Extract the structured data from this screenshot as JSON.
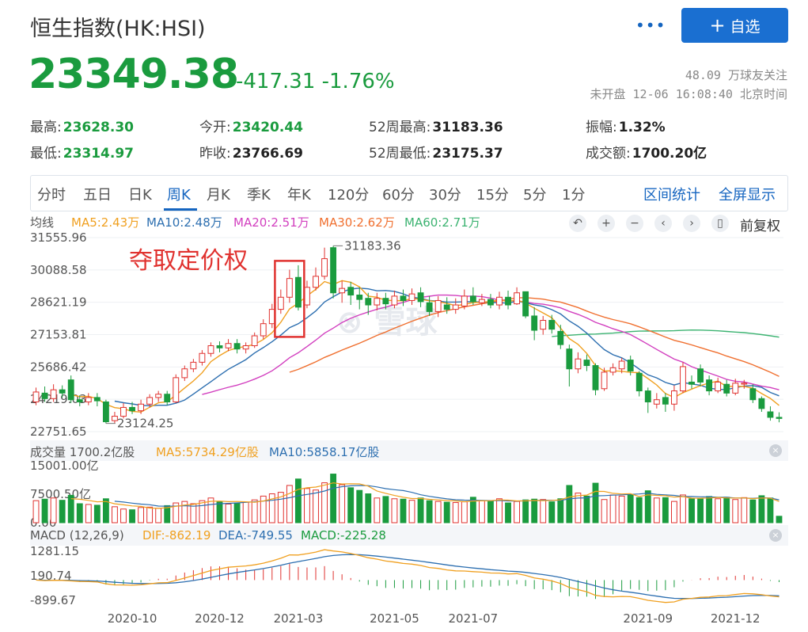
{
  "header": {
    "title": "恒生指数(HK:HSI)",
    "follow_label": "自选",
    "price": "23349.38",
    "change": "-417.31",
    "change_pct": "-1.76%",
    "followers": "48.09 万球友关注",
    "status": "未开盘 12-06 16:08:40 北京时间",
    "colors": {
      "down": "#1a9b3e",
      "up": "#e0322f",
      "accent": "#1a6fd1"
    }
  },
  "quote": {
    "high_label": "最高:",
    "high": "23628.30",
    "low_label": "最低:",
    "low": "23314.97",
    "open_label": "今开:",
    "open": "23420.44",
    "prev_close_label": "昨收:",
    "prev_close": "23766.69",
    "wk52_high_label": "52周最高:",
    "wk52_high": "31183.36",
    "wk52_low_label": "52周最低:",
    "wk52_low": "23175.37",
    "amplitude_label": "振幅:",
    "amplitude": "1.32%",
    "turnover_label": "成交额:",
    "turnover": "1700.20亿"
  },
  "tabs": [
    "分时",
    "五日",
    "日K",
    "周K",
    "月K",
    "季K",
    "年K",
    "120分",
    "60分",
    "30分",
    "15分",
    "5分",
    "1分"
  ],
  "active_tab": "周K",
  "tools": {
    "range_stats": "区间统计",
    "fullscreen": "全屏显示",
    "restore_right": "前复权"
  },
  "legend": {
    "avg_label": "均线",
    "ma5": "MA5:2.43万",
    "ma10": "MA10:2.48万",
    "ma20": "MA20:2.51万",
    "ma30": "MA30:2.62万",
    "ma60": "MA60:2.71万",
    "colors": {
      "ma5": "#f0a020",
      "ma10": "#2d6fb0",
      "ma20": "#d23fbf",
      "ma30": "#f07030",
      "ma60": "#3cb371"
    }
  },
  "volume_legend": {
    "label": "成交量 1700.2亿股",
    "ma5": "MA5:5734.29亿股",
    "ma10": "MA10:5858.17亿股"
  },
  "macd_legend": {
    "label": "MACD (12,26,9)",
    "dif": "DIF:-862.19",
    "dea": "DEA:-749.55",
    "macd": "MACD:-225.28"
  },
  "annotation": "夺取定价权",
  "chart_data": {
    "type": "candlestick",
    "interval": "weekly",
    "price_axis": {
      "ticks": [
        "31555.96",
        "30088.58",
        "28621.19",
        "27153.81",
        "25686.42",
        "24219.03",
        "22751.65"
      ],
      "range": [
        22751.65,
        31555.96
      ]
    },
    "max_marker": "31183.36",
    "min_marker": "23124.25",
    "x_ticks": [
      "2020-10",
      "2020-12",
      "2021-03",
      "2021-05",
      "2021-07",
      "2021-09",
      "2021-12"
    ],
    "candles": [
      [
        24100,
        24550,
        24750,
        23950
      ],
      [
        24500,
        24250,
        24800,
        24100
      ],
      [
        24250,
        24650,
        24900,
        24100
      ],
      [
        24650,
        24500,
        24850,
        24300
      ],
      [
        25100,
        24200,
        25300,
        24050
      ],
      [
        24200,
        24100,
        24400,
        23900
      ],
      [
        24100,
        24300,
        24500,
        23950
      ],
      [
        24300,
        24150,
        24500,
        23900
      ],
      [
        24100,
        23200,
        24200,
        23124.25
      ],
      [
        23250,
        23450,
        23650,
        23124.25
      ],
      [
        23450,
        23850,
        24050,
        23350
      ],
      [
        23850,
        23700,
        24100,
        23550
      ],
      [
        23700,
        24000,
        24200,
        23550
      ],
      [
        24000,
        24300,
        24450,
        23850
      ],
      [
        24300,
        24450,
        24600,
        24100
      ],
      [
        24450,
        24100,
        24600,
        23950
      ],
      [
        24100,
        25200,
        25350,
        24050
      ],
      [
        25200,
        25600,
        25750,
        25050
      ],
      [
        25600,
        25900,
        26050,
        25450
      ],
      [
        25900,
        26300,
        26450,
        25750
      ],
      [
        26300,
        26650,
        26800,
        26150
      ],
      [
        26650,
        26550,
        26850,
        26350
      ],
      [
        26550,
        26750,
        26950,
        26400
      ],
      [
        26750,
        26500,
        26950,
        26300
      ],
      [
        26500,
        26650,
        26800,
        26300
      ],
      [
        26650,
        27100,
        27250,
        26550
      ],
      [
        27100,
        27650,
        27850,
        26950
      ],
      [
        27650,
        28300,
        28550,
        27450
      ],
      [
        28300,
        28850,
        29200,
        28100
      ],
      [
        28850,
        29700,
        30100,
        28600
      ],
      [
        29750,
        28400,
        30300,
        28250
      ],
      [
        28500,
        29300,
        29600,
        28350
      ],
      [
        29300,
        29800,
        30200,
        29150
      ],
      [
        29800,
        30600,
        31100,
        29650
      ],
      [
        31100,
        29050,
        31183.36,
        28800
      ],
      [
        29050,
        29250,
        29600,
        28600
      ],
      [
        29300,
        28950,
        29550,
        28500
      ],
      [
        28950,
        28750,
        29300,
        28300
      ],
      [
        28800,
        28500,
        29050,
        28050
      ],
      [
        28500,
        28800,
        29050,
        28250
      ],
      [
        28800,
        28550,
        29050,
        28300
      ],
      [
        28500,
        28900,
        29150,
        28350
      ],
      [
        28900,
        28700,
        29200,
        28450
      ],
      [
        28700,
        29000,
        29250,
        28500
      ],
      [
        29050,
        28650,
        29300,
        28400
      ],
      [
        28600,
        28200,
        28900,
        28000
      ],
      [
        28200,
        28700,
        28900,
        27950
      ],
      [
        28500,
        28300,
        28850,
        28100
      ],
      [
        28300,
        28500,
        28800,
        28100
      ],
      [
        28450,
        28900,
        29200,
        28300
      ],
      [
        28900,
        28650,
        29300,
        28500
      ],
      [
        28600,
        28750,
        29000,
        28450
      ],
      [
        28750,
        28500,
        29000,
        28350
      ],
      [
        28500,
        28850,
        29100,
        28300
      ],
      [
        28850,
        28500,
        29150,
        28300
      ],
      [
        28550,
        29050,
        29300,
        28500
      ],
      [
        29100,
        28000,
        29100,
        27900
      ],
      [
        28000,
        27350,
        28400,
        26900
      ],
      [
        27400,
        27800,
        28000,
        27150
      ],
      [
        27800,
        27400,
        28050,
        27200
      ],
      [
        27300,
        26700,
        27600,
        26500
      ],
      [
        26500,
        25600,
        26700,
        24800
      ],
      [
        25600,
        26050,
        26350,
        25400
      ],
      [
        26000,
        25750,
        26250,
        25500
      ],
      [
        25750,
        24650,
        25850,
        24400
      ],
      [
        24700,
        25450,
        25650,
        24600
      ],
      [
        25450,
        25650,
        25850,
        25300
      ],
      [
        25600,
        25950,
        26100,
        25400
      ],
      [
        26000,
        25500,
        26200,
        25300
      ],
      [
        25400,
        24600,
        25500,
        24350
      ],
      [
        24600,
        24100,
        24750,
        23600
      ],
      [
        24000,
        24200,
        24500,
        23800
      ],
      [
        24300,
        24000,
        24500,
        23650
      ],
      [
        24000,
        24600,
        24850,
        23700
      ],
      [
        24600,
        25700,
        25900,
        24500
      ],
      [
        25000,
        24900,
        25300,
        24700
      ],
      [
        25600,
        25000,
        25800,
        24800
      ],
      [
        25100,
        24600,
        25300,
        24400
      ],
      [
        24600,
        25000,
        25200,
        24500
      ],
      [
        24900,
        24500,
        25100,
        24350
      ],
      [
        24500,
        24950,
        25150,
        24400
      ],
      [
        24950,
        24950,
        25100,
        24700
      ],
      [
        24700,
        24200,
        24900,
        24050
      ],
      [
        24250,
        23800,
        24350,
        23650
      ],
      [
        23650,
        23400,
        23900,
        23250
      ],
      [
        23400,
        23349.38,
        23628.3,
        23175.37
      ]
    ],
    "volume_axis": {
      "ticks": [
        "15001.00亿",
        "7500.50亿",
        "0.00"
      ],
      "range": [
        0,
        15001
      ]
    },
    "volume": [
      5800,
      6200,
      6500,
      5900,
      7200,
      5000,
      4800,
      4600,
      6300,
      4200,
      3600,
      3400,
      4000,
      4100,
      3800,
      4500,
      5200,
      5600,
      5000,
      5800,
      6500,
      5500,
      4900,
      5200,
      5400,
      6000,
      7000,
      7600,
      8000,
      9800,
      11500,
      9000,
      8600,
      10500,
      12800,
      10000,
      9200,
      8500,
      7600,
      6500,
      6900,
      6300,
      6200,
      5900,
      6500,
      5800,
      5600,
      5400,
      5300,
      5500,
      6700,
      5800,
      5700,
      6300,
      5200,
      5600,
      6000,
      6200,
      6100,
      5500,
      6300,
      9800,
      7800,
      7000,
      10400,
      6100,
      7300,
      7000,
      7400,
      6600,
      8400,
      6500,
      6600,
      5600,
      7300,
      6300,
      6400,
      6900,
      6300,
      6700,
      6100,
      6600,
      6000,
      7100,
      6500,
      1700.2
    ],
    "macd_axis": {
      "ticks": [
        "1281.15",
        "190.74",
        "-899.67"
      ],
      "range": [
        -899.67,
        1281.15
      ]
    }
  }
}
